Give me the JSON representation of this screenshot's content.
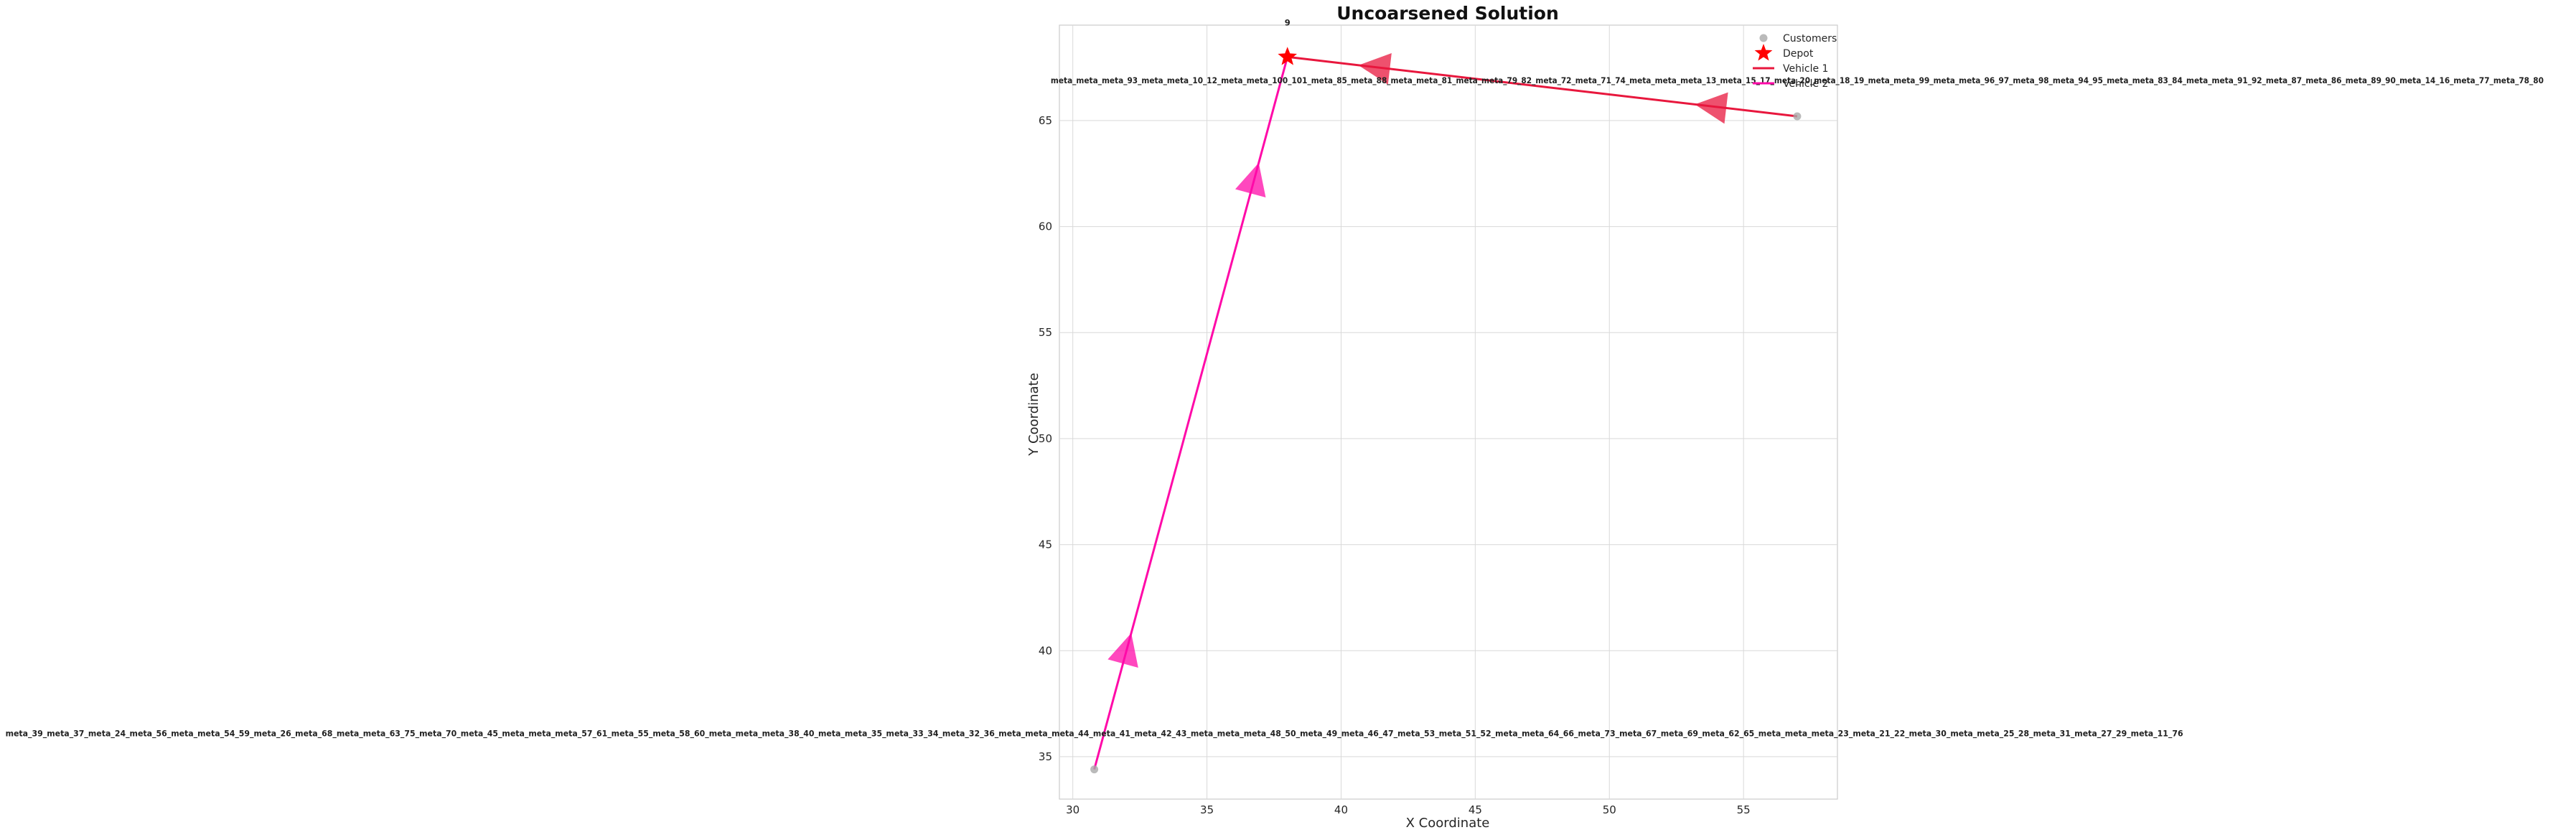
{
  "chart_data": {
    "type": "scatter",
    "title": "Uncoarsened Solution",
    "xlabel": "X Coordinate",
    "ylabel": "Y Coordinate",
    "xlim": [
      29.5,
      58.5
    ],
    "ylim": [
      33.0,
      69.5
    ],
    "xticks": [
      30,
      35,
      40,
      45,
      50,
      55
    ],
    "yticks": [
      35,
      40,
      45,
      50,
      55,
      60,
      65
    ],
    "grid": true,
    "legend_position": "top-right",
    "legend": [
      "Customers",
      "Depot",
      "Vehicle 1",
      "Vehicle 2"
    ],
    "customers": [
      {
        "x": 30.8,
        "y": 34.4,
        "label": "meta_39_meta_37_meta_24_meta_56_meta_meta_54_59_meta_26_meta_68_meta_meta_63_75_meta_70_meta_45_meta_meta_meta_57_61_meta_55_meta_58_60_meta_meta_meta_38_40_meta_meta_35_meta_33_34_meta_32_36_meta_meta_meta_44_meta_41_meta_42_43_meta_meta_meta_48_50_meta_49_meta_46_47_meta_53_meta_51_52_meta_meta_64_66_meta_73_meta_67_meta_69_meta_62_65_meta_meta_meta_23_meta_21_22_meta_30_meta_meta_25_28_meta_31_meta_27_29_meta_11_76"
      },
      {
        "x": 57.0,
        "y": 65.2,
        "label": "meta_meta_meta_93_meta_meta_10_12_meta_meta_100_101_meta_85_meta_88_meta_meta_81_meta_meta_79_82_meta_72_meta_71_74_meta_meta_meta_13_meta_15_17_meta_20_meta_18_19_meta_meta_99_meta_meta_96_97_meta_98_meta_94_95_meta_meta_83_84_meta_meta_91_92_meta_87_meta_86_meta_89_90_meta_14_16_meta_77_meta_78_80"
      }
    ],
    "depot": {
      "x": 38.0,
      "y": 68.0,
      "label": "9"
    },
    "series": [
      {
        "name": "Vehicle 1",
        "color": "#e8173d",
        "x": [
          38.0,
          57.0
        ],
        "y": [
          68.0,
          65.2
        ]
      },
      {
        "name": "Vehicle 2",
        "color": "#ff0aa8",
        "x": [
          38.0,
          30.8
        ],
        "y": [
          68.0,
          34.4
        ]
      }
    ],
    "colors": {
      "customers": "#a9a9a9",
      "depot": "#ff0000",
      "grid": "#d9d9d9",
      "frame": "#cccccc"
    }
  }
}
